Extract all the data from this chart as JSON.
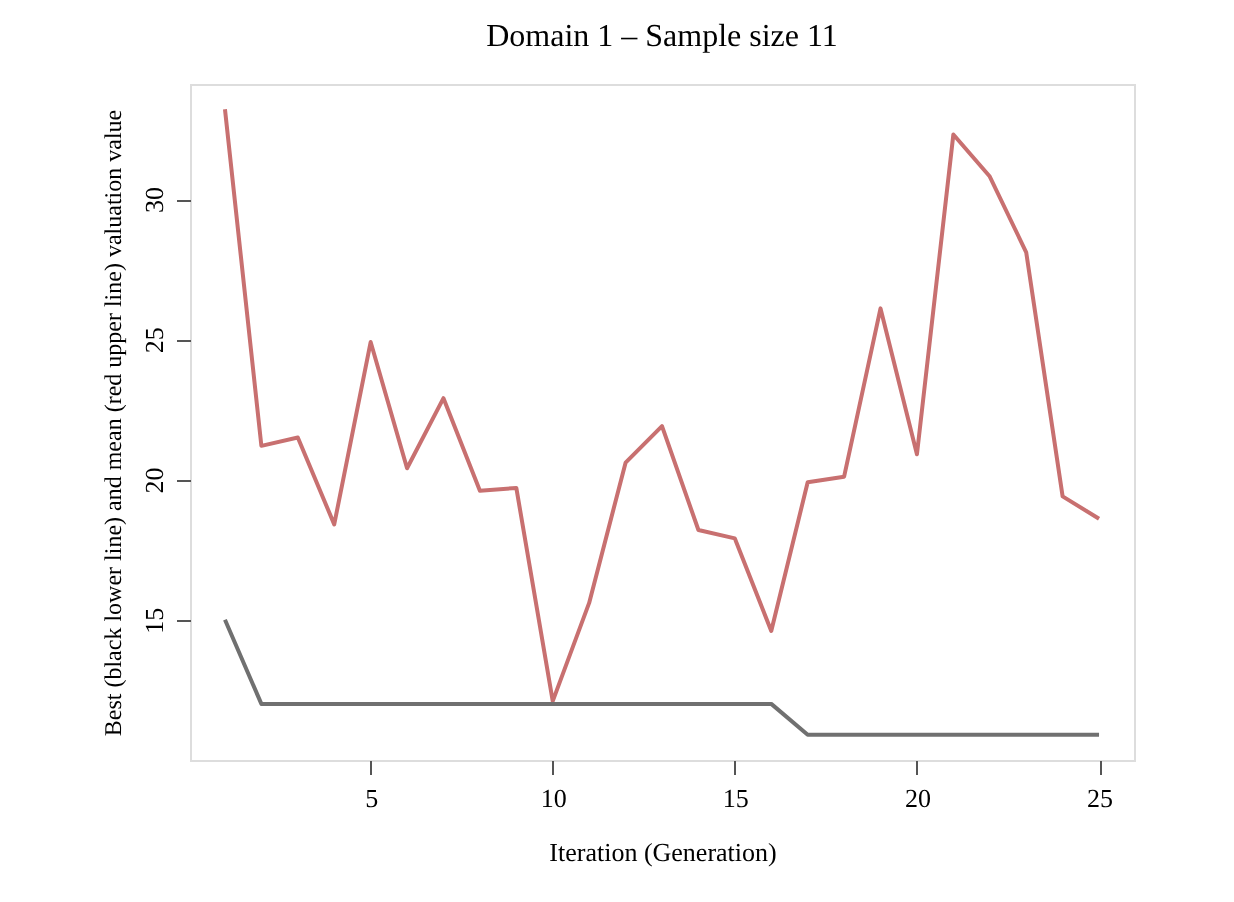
{
  "chart_data": {
    "type": "line",
    "title": "Domain 1 – Sample size 11",
    "xlabel": "Iteration (Generation)",
    "ylabel": "Best (black lower line) and mean (red upper line) valuation value",
    "x": [
      1,
      2,
      3,
      4,
      5,
      6,
      7,
      8,
      9,
      10,
      11,
      12,
      13,
      14,
      15,
      16,
      17,
      18,
      19,
      20,
      21,
      22,
      23,
      24,
      25
    ],
    "series": [
      {
        "color": "#c87070",
        "values": [
          33.2,
          21.2,
          21.5,
          18.4,
          24.9,
          20.4,
          22.9,
          19.6,
          19.7,
          12.1,
          15.6,
          20.6,
          21.9,
          18.2,
          17.9,
          14.6,
          19.9,
          20.1,
          26.1,
          20.9,
          32.3,
          30.8,
          28.1,
          19.4,
          18.6
        ]
      },
      {
        "color": "#707070",
        "values": [
          15,
          12,
          12,
          12,
          12,
          12,
          12,
          12,
          12,
          12,
          12,
          12,
          12,
          12,
          12,
          12,
          10.9,
          10.9,
          10.9,
          10.9,
          10.9,
          10.9,
          10.9,
          10.9,
          10.9
        ]
      }
    ],
    "xlim": [
      0.04,
      25.96
    ],
    "ylim": [
      10.0,
      34.1
    ],
    "xticks": [
      5,
      10,
      15,
      20,
      25
    ],
    "yticks": [
      15,
      20,
      25,
      30
    ],
    "grid": false,
    "line_style": "solid",
    "marker": "none"
  }
}
